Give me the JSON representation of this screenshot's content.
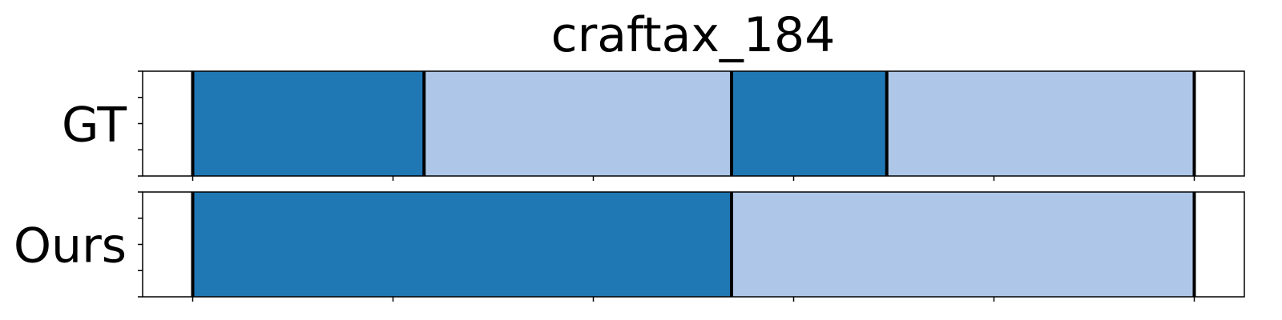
{
  "chart_data": {
    "type": "bar",
    "title": "craftax_184",
    "xlabel": "",
    "ylabel": "",
    "xlim": [
      -0.05,
      1.05
    ],
    "boundary_color": "#000000",
    "segment_colors": [
      "#1f77b4",
      "#aec7e8"
    ],
    "x_ticks": [
      0,
      0.2,
      0.4,
      0.6,
      0.8,
      1.0
    ],
    "y_ticks_per_row": 5,
    "rows": [
      {
        "name": "GT",
        "segments": [
          {
            "start": 0.0,
            "end": 0.231,
            "color": "#1f77b4"
          },
          {
            "start": 0.231,
            "end": 0.538,
            "color": "#aec7e8"
          },
          {
            "start": 0.538,
            "end": 0.693,
            "color": "#1f77b4"
          },
          {
            "start": 0.693,
            "end": 1.0,
            "color": "#aec7e8"
          }
        ]
      },
      {
        "name": "Ours",
        "segments": [
          {
            "start": 0.0,
            "end": 0.538,
            "color": "#1f77b4"
          },
          {
            "start": 0.538,
            "end": 1.0,
            "color": "#aec7e8"
          }
        ]
      }
    ]
  }
}
